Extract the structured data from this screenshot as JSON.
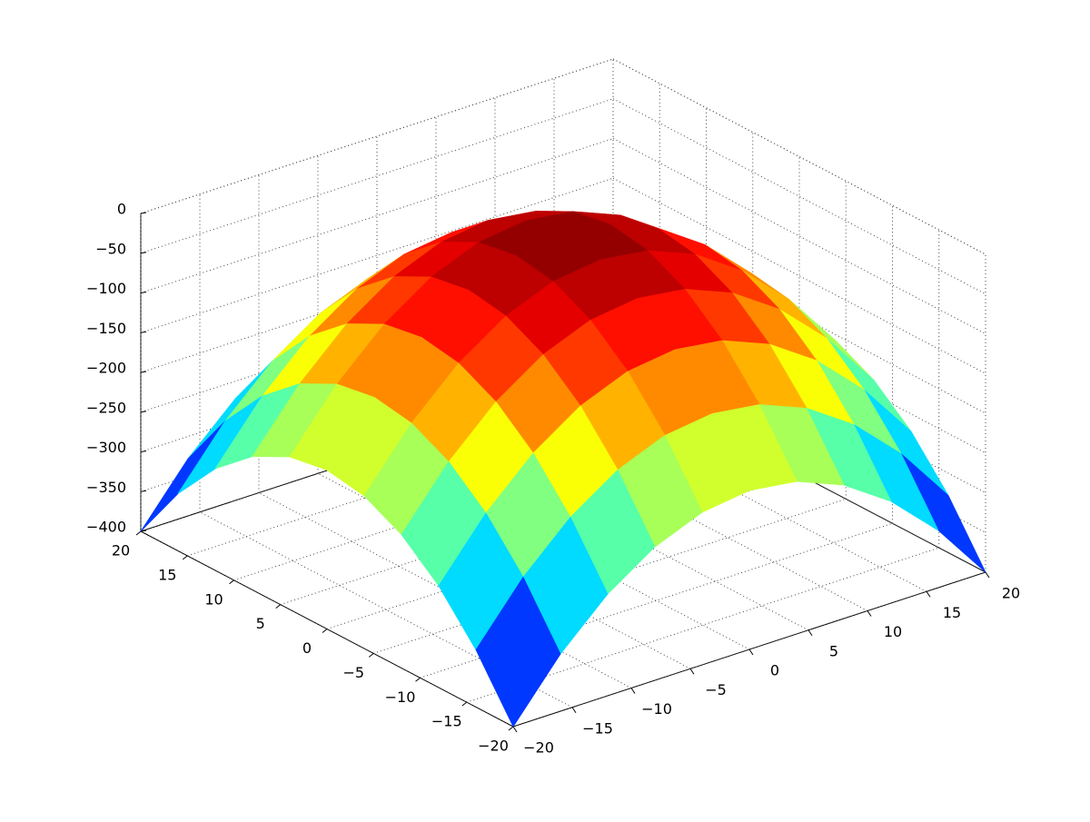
{
  "chart_data": {
    "type": "surface",
    "x": [
      -20,
      -16,
      -12,
      -8,
      -4,
      0,
      4,
      8,
      12,
      16,
      20
    ],
    "y": [
      -20,
      -16,
      -12,
      -8,
      -4,
      0,
      4,
      8,
      12,
      16,
      20
    ],
    "z": [
      [
        -400,
        -328,
        -272,
        -232,
        -208,
        -200,
        -208,
        -232,
        -272,
        -328,
        -400
      ],
      [
        -328,
        -256,
        -200,
        -160,
        -136,
        -128,
        -136,
        -160,
        -200,
        -256,
        -328
      ],
      [
        -272,
        -200,
        -144,
        -104,
        -80,
        -72,
        -80,
        -104,
        -144,
        -200,
        -272
      ],
      [
        -232,
        -160,
        -104,
        -64,
        -40,
        -32,
        -40,
        -64,
        -104,
        -160,
        -232
      ],
      [
        -208,
        -136,
        -80,
        -40,
        -16,
        -8,
        -16,
        -40,
        -80,
        -136,
        -208
      ],
      [
        -200,
        -128,
        -72,
        -32,
        -8,
        0,
        -8,
        -32,
        -72,
        -128,
        -200
      ],
      [
        -208,
        -136,
        -80,
        -40,
        -16,
        -8,
        -16,
        -40,
        -80,
        -136,
        -208
      ],
      [
        -232,
        -160,
        -104,
        -64,
        -40,
        -32,
        -40,
        -64,
        -104,
        -160,
        -232
      ],
      [
        -272,
        -200,
        -144,
        -104,
        -80,
        -72,
        -80,
        -104,
        -144,
        -200,
        -272
      ],
      [
        -328,
        -256,
        -200,
        -160,
        -136,
        -128,
        -136,
        -160,
        -200,
        -256,
        -328
      ],
      [
        -400,
        -328,
        -272,
        -232,
        -208,
        -200,
        -208,
        -232,
        -272,
        -328,
        -400
      ]
    ],
    "xlim": [
      -20,
      20
    ],
    "ylim": [
      -20,
      20
    ],
    "zlim": [
      -400,
      0
    ],
    "xticks": [
      {
        "value": -20,
        "label": "−20"
      },
      {
        "value": -15,
        "label": "−15"
      },
      {
        "value": -10,
        "label": "−10"
      },
      {
        "value": -5,
        "label": "−5"
      },
      0,
      5,
      10,
      15,
      20
    ],
    "yticks": [
      {
        "value": -20,
        "label": "−20"
      },
      {
        "value": -15,
        "label": "−15"
      },
      {
        "value": -10,
        "label": "−10"
      },
      {
        "value": -5,
        "label": "−5"
      },
      0,
      5,
      10,
      15,
      20
    ],
    "zticks": [
      {
        "value": -400,
        "label": "−400"
      },
      {
        "value": -350,
        "label": "−350"
      },
      {
        "value": -300,
        "label": "−300"
      },
      {
        "value": -250,
        "label": "−250"
      },
      {
        "value": -200,
        "label": "−200"
      },
      {
        "value": -150,
        "label": "−150"
      },
      {
        "value": -100,
        "label": "−100"
      },
      {
        "value": -50,
        "label": "−50"
      },
      0
    ],
    "grid": true,
    "colormap": "jet"
  }
}
